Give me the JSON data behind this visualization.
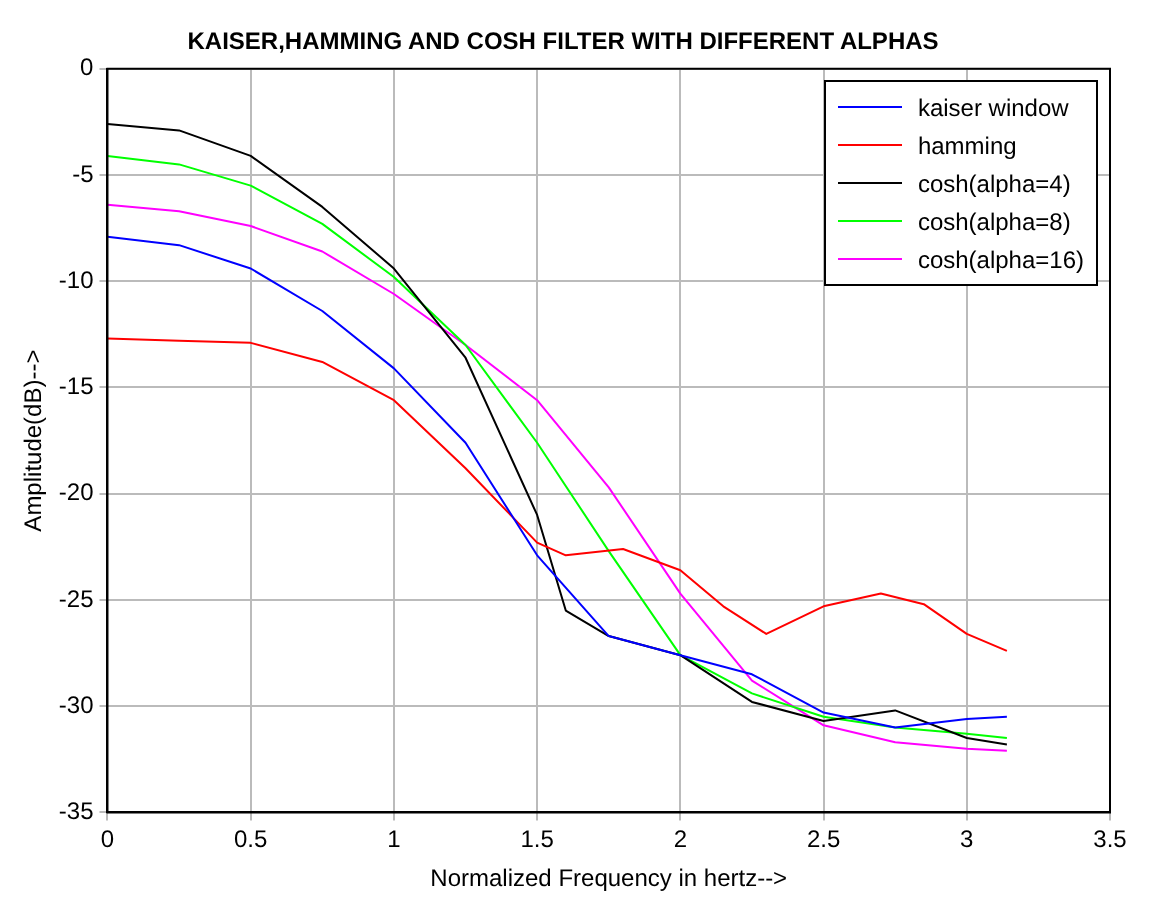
{
  "chart_data": {
    "type": "line",
    "title": "KAISER,HAMMING AND COSH FILTER WITH DIFFERENT ALPHAS",
    "xlabel": "Normalized Frequency in hertz-->",
    "ylabel": "Amplitude(dB)-->",
    "x": [
      0,
      0.25,
      0.5,
      0.75,
      1,
      1.25,
      1.5,
      1.75,
      2,
      2.25,
      2.5,
      2.75,
      3,
      3.14
    ],
    "series": [
      {
        "name": "kaiser window",
        "color": "#0000ff",
        "values": [
          -7.9,
          -8.3,
          -9.4,
          -11.4,
          -14.1,
          -17.6,
          -22.9,
          -26.7,
          -27.6,
          -28.5,
          -30.3,
          -31,
          -30.6,
          -30.5
        ]
      },
      {
        "name": "hamming",
        "color": "#ff0000",
        "x": [
          0,
          0.25,
          0.5,
          0.75,
          1,
          1.25,
          1.5,
          1.6,
          1.8,
          2,
          2.15,
          2.3,
          2.5,
          2.7,
          2.85,
          3,
          3.14
        ],
        "values": [
          -12.7,
          -12.8,
          -12.9,
          -13.8,
          -15.6,
          -18.8,
          -22.3,
          -22.9,
          -22.6,
          -23.6,
          -25.3,
          -26.6,
          -25.3,
          -24.7,
          -25.2,
          -26.6,
          -27.4
        ]
      },
      {
        "name": "cosh(alpha=4)",
        "color": "#000000",
        "x": [
          0,
          0.25,
          0.5,
          0.75,
          1,
          1.25,
          1.5,
          1.6,
          1.75,
          2,
          2.25,
          2.5,
          2.75,
          3,
          3.14
        ],
        "values": [
          -2.6,
          -2.9,
          -4.1,
          -6.5,
          -9.4,
          -13.6,
          -21,
          -25.5,
          -26.7,
          -27.6,
          -29.8,
          -30.7,
          -30.2,
          -31.5,
          -31.8
        ]
      },
      {
        "name": "cosh(alpha=8)",
        "color": "#00ff00",
        "values": [
          -4.1,
          -4.5,
          -5.5,
          -7.3,
          -9.8,
          -13,
          -17.6,
          -22.7,
          -27.6,
          -29.4,
          -30.5,
          -31,
          -31.3,
          -31.5
        ]
      },
      {
        "name": "cosh(alpha=16)",
        "color": "#ff00ff",
        "values": [
          -6.4,
          -6.7,
          -7.4,
          -8.6,
          -10.6,
          -13,
          -15.6,
          -19.7,
          -24.7,
          -28.8,
          -30.9,
          -31.7,
          -32,
          -32.1
        ]
      }
    ],
    "xlim": [
      0,
      3.5
    ],
    "xticks": [
      0,
      0.5,
      1,
      1.5,
      2,
      2.5,
      3,
      3.5
    ],
    "ylim": [
      -35,
      0
    ],
    "yticks": [
      -35,
      -30,
      -25,
      -20,
      -15,
      -10,
      -5,
      0
    ],
    "grid": true,
    "legend": "top right",
    "marker": "none",
    "line_style": "solid"
  }
}
